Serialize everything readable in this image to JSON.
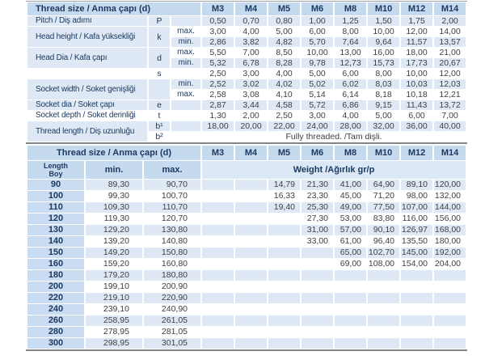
{
  "colors": {
    "header_blue": "#c6daef",
    "stripe_blue": "#dfe9f5",
    "weight_band_blue": "#dce8f5",
    "label_navy": "#1c3a61",
    "value_gray": "#3d3f42",
    "border_gray": "#82878c"
  },
  "spec_table": {
    "title": "Thread size / Anma çapı (d)",
    "columns": [
      "M3",
      "M4",
      "M5",
      "M6",
      "M8",
      "M10",
      "M12",
      "M14"
    ],
    "groups": [
      {
        "label": "Pitch / Diş adımı",
        "rows": [
          {
            "sym": "P",
            "tol": "",
            "values": [
              "0,50",
              "0,70",
              "0,80",
              "1,00",
              "1,25",
              "1,50",
              "1,75",
              "2,00"
            ]
          }
        ]
      },
      {
        "label": "Head height / Kafa yüksekliği",
        "sym": "k",
        "rows": [
          {
            "tol": "max.",
            "values": [
              "3,00",
              "4,00",
              "5,00",
              "6,00",
              "8,00",
              "10,00",
              "12,00",
              "14,00"
            ]
          },
          {
            "tol": "min.",
            "values": [
              "2,86",
              "3,82",
              "4,82",
              "5,70",
              "7,64",
              "9,64",
              "11,57",
              "13,57"
            ]
          }
        ]
      },
      {
        "label": "Head Dia / Kafa çapı",
        "sym": "d",
        "rows": [
          {
            "tol": "max.",
            "values": [
              "5,50",
              "7,00",
              "8,50",
              "10,00",
              "13,00",
              "16,00",
              "18,00",
              "21,00"
            ]
          },
          {
            "tol": "min.",
            "values": [
              "5,32",
              "6,78",
              "8,28",
              "9,78",
              "12,73",
              "15,73",
              "17,73",
              "20,67"
            ]
          }
        ]
      },
      {
        "label": "",
        "rows": [
          {
            "sym": "s",
            "tol": "",
            "values": [
              "2,50",
              "3,00",
              "4,00",
              "5,00",
              "6,00",
              "8,00",
              "10,00",
              "12,00"
            ]
          }
        ]
      },
      {
        "label": "Socket width / Soket genişliği",
        "sym": "",
        "rows": [
          {
            "tol": "min.",
            "values": [
              "2,52",
              "3,02",
              "4,02",
              "5,02",
              "6,02",
              "8,03",
              "10,03",
              "12,03"
            ]
          },
          {
            "tol": "max.",
            "values": [
              "2,58",
              "3,08",
              "4,10",
              "5,14",
              "6,14",
              "8,18",
              "10,18",
              "12,21"
            ]
          }
        ]
      },
      {
        "label": "Socket dia / Soket çapı",
        "rows": [
          {
            "sym": "e",
            "tol": "",
            "values": [
              "2,87",
              "3,44",
              "4,58",
              "5,72",
              "6,86",
              "9,15",
              "11,43",
              "13,72"
            ]
          }
        ]
      },
      {
        "label": "Socket depth / Soket derinliği",
        "rows": [
          {
            "sym": "t",
            "tol": "",
            "values": [
              "1,30",
              "2,00",
              "2,50",
              "3,00",
              "4,00",
              "5,00",
              "6,00",
              "7,00"
            ]
          }
        ]
      },
      {
        "label": "Thread length / Diş uzunluğu",
        "rows": [
          {
            "sym": "b¹",
            "tol": "",
            "values": [
              "18,00",
              "20,00",
              "22,00",
              "24,00",
              "28,00",
              "32,00",
              "36,00",
              "40,00"
            ]
          },
          {
            "sym": "b²",
            "tol": "",
            "span_text": "Fully threaded. /Tam dişli."
          }
        ]
      }
    ]
  },
  "weight_table": {
    "title": "Thread size / Anma çapı (d)",
    "columns": [
      "M3",
      "M4",
      "M5",
      "M6",
      "M8",
      "M10",
      "M12",
      "M14"
    ],
    "length_header_line1": "Length",
    "length_header_line2": "Boy",
    "min_header": "min.",
    "max_header": "max.",
    "weight_header": "Weight /Ağırlık gr/p",
    "rows": [
      {
        "len": "90",
        "min": "89,30",
        "max": "90,70",
        "w": [
          "",
          "",
          "14,79",
          "21,30",
          "41,00",
          "64,90",
          "89,10",
          "120,00"
        ]
      },
      {
        "len": "100",
        "min": "99,30",
        "max": "100,70",
        "w": [
          "",
          "",
          "16,33",
          "23,30",
          "45,00",
          "71,20",
          "98,00",
          "132,00"
        ]
      },
      {
        "len": "110",
        "min": "109,30",
        "max": "110,70",
        "w": [
          "",
          "",
          "19,40",
          "25,30",
          "49,00",
          "77,50",
          "107,00",
          "144,00"
        ]
      },
      {
        "len": "120",
        "min": "119,30",
        "max": "120,70",
        "w": [
          "",
          "",
          "",
          "27,30",
          "53,00",
          "83,80",
          "116,00",
          "156,00"
        ]
      },
      {
        "len": "130",
        "min": "129,20",
        "max": "130,80",
        "w": [
          "",
          "",
          "",
          "31,00",
          "57,00",
          "90,10",
          "126,97",
          "168,00"
        ]
      },
      {
        "len": "140",
        "min": "139,20",
        "max": "140,80",
        "w": [
          "",
          "",
          "",
          "33,00",
          "61,00",
          "96,40",
          "135,50",
          "180,00"
        ]
      },
      {
        "len": "150",
        "min": "149,20",
        "max": "150,80",
        "w": [
          "",
          "",
          "",
          "",
          "65,00",
          "102,70",
          "145,00",
          "192,00"
        ]
      },
      {
        "len": "160",
        "min": "159,20",
        "max": "160,80",
        "w": [
          "",
          "",
          "",
          "",
          "69,00",
          "108,00",
          "154,00",
          "204,00"
        ]
      },
      {
        "len": "180",
        "min": "179,20",
        "max": "180,80",
        "w": [
          "",
          "",
          "",
          "",
          "",
          "",
          "",
          ""
        ]
      },
      {
        "len": "200",
        "min": "199,10",
        "max": "200,90",
        "w": [
          "",
          "",
          "",
          "",
          "",
          "",
          "",
          ""
        ]
      },
      {
        "len": "220",
        "min": "219,10",
        "max": "220,90",
        "w": [
          "",
          "",
          "",
          "",
          "",
          "",
          "",
          ""
        ]
      },
      {
        "len": "240",
        "min": "239,10",
        "max": "240,90",
        "w": [
          "",
          "",
          "",
          "",
          "",
          "",
          "",
          ""
        ]
      },
      {
        "len": "260",
        "min": "258,95",
        "max": "261,05",
        "w": [
          "",
          "",
          "",
          "",
          "",
          "",
          "",
          ""
        ]
      },
      {
        "len": "280",
        "min": "278,95",
        "max": "281,05",
        "w": [
          "",
          "",
          "",
          "",
          "",
          "",
          "",
          ""
        ]
      },
      {
        "len": "300",
        "min": "298,95",
        "max": "301,05",
        "w": [
          "",
          "",
          "",
          "",
          "",
          "",
          "",
          ""
        ]
      }
    ]
  }
}
